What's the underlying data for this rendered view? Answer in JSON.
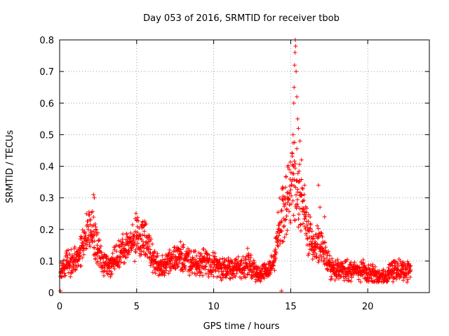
{
  "chart_data": {
    "type": "scatter",
    "title": "Day 053 of 2016, SRMTID for receiver tbob",
    "xlabel": "GPS time / hours",
    "ylabel": "SRMTID / TECUs",
    "xlim": [
      0,
      24
    ],
    "ylim": [
      0,
      0.8
    ],
    "x_ticks": [
      0,
      5,
      10,
      15,
      20
    ],
    "x_tick_labels": [
      "0",
      "5",
      "10",
      "15",
      "20"
    ],
    "y_ticks": [
      0,
      0.1,
      0.2,
      0.3,
      0.4,
      0.5,
      0.6,
      0.7,
      0.8
    ],
    "y_tick_labels": [
      "0",
      "0.1",
      "0.2",
      "0.3",
      "0.4",
      "0.5",
      "0.6",
      "0.7",
      "0.8"
    ],
    "grid": true,
    "marker": "+",
    "series_color": "#ff0000",
    "profile": {
      "x": [
        0.0,
        0.2,
        0.5,
        0.8,
        1.0,
        1.3,
        1.5,
        1.7,
        1.9,
        2.0,
        2.1,
        2.2,
        2.4,
        2.6,
        2.8,
        3.0,
        3.3,
        3.6,
        3.9,
        4.2,
        4.5,
        4.8,
        5.0,
        5.2,
        5.4,
        5.6,
        5.8,
        6.0,
        6.3,
        6.6,
        7.0,
        7.3,
        7.6,
        7.8,
        8.0,
        8.3,
        8.6,
        9.0,
        9.3,
        9.6,
        10.0,
        10.3,
        10.6,
        11.0,
        11.3,
        11.6,
        11.9,
        12.2,
        12.4,
        12.6,
        12.8,
        13.0,
        13.2,
        13.5,
        13.8,
        14.0,
        14.2,
        14.4,
        14.6,
        14.8,
        15.0,
        15.2,
        15.4,
        15.6,
        15.8,
        16.0,
        16.2,
        16.4,
        16.6,
        16.8,
        17.0,
        17.2,
        17.4,
        17.6,
        17.8,
        18.0,
        18.3,
        18.6,
        19.0,
        19.3,
        19.6,
        20.0,
        20.3,
        20.6,
        21.0,
        21.3,
        21.6,
        21.9,
        22.2,
        22.5,
        22.8
      ],
      "y": [
        0.07,
        0.08,
        0.09,
        0.1,
        0.1,
        0.12,
        0.15,
        0.18,
        0.2,
        0.21,
        0.2,
        0.18,
        0.15,
        0.12,
        0.1,
        0.09,
        0.09,
        0.1,
        0.12,
        0.14,
        0.15,
        0.16,
        0.18,
        0.17,
        0.18,
        0.16,
        0.14,
        0.11,
        0.09,
        0.08,
        0.09,
        0.1,
        0.11,
        0.12,
        0.11,
        0.1,
        0.09,
        0.09,
        0.1,
        0.1,
        0.09,
        0.08,
        0.08,
        0.08,
        0.07,
        0.08,
        0.08,
        0.09,
        0.08,
        0.07,
        0.06,
        0.06,
        0.07,
        0.07,
        0.08,
        0.12,
        0.2,
        0.25,
        0.27,
        0.3,
        0.33,
        0.36,
        0.33,
        0.3,
        0.27,
        0.22,
        0.18,
        0.16,
        0.15,
        0.15,
        0.14,
        0.12,
        0.1,
        0.08,
        0.07,
        0.07,
        0.07,
        0.07,
        0.07,
        0.07,
        0.07,
        0.06,
        0.06,
        0.05,
        0.05,
        0.06,
        0.07,
        0.07,
        0.07,
        0.07,
        0.07
      ]
    },
    "spikes": [
      {
        "x": 2.2,
        "y": 0.31
      },
      {
        "x": 2.25,
        "y": 0.3
      },
      {
        "x": 5.0,
        "y": 0.23
      },
      {
        "x": 5.4,
        "y": 0.225
      },
      {
        "x": 15.1,
        "y": 0.44
      },
      {
        "x": 15.15,
        "y": 0.5
      },
      {
        "x": 15.2,
        "y": 0.6
      },
      {
        "x": 15.22,
        "y": 0.65
      },
      {
        "x": 15.25,
        "y": 0.72
      },
      {
        "x": 15.28,
        "y": 0.76
      },
      {
        "x": 15.3,
        "y": 0.8
      },
      {
        "x": 15.32,
        "y": 0.78
      },
      {
        "x": 15.35,
        "y": 0.7
      },
      {
        "x": 15.4,
        "y": 0.62
      },
      {
        "x": 15.45,
        "y": 0.55
      },
      {
        "x": 15.5,
        "y": 0.52
      },
      {
        "x": 15.6,
        "y": 0.48
      },
      {
        "x": 15.7,
        "y": 0.42
      },
      {
        "x": 14.5,
        "y": 0.33
      },
      {
        "x": 14.9,
        "y": 0.39
      },
      {
        "x": 15.9,
        "y": 0.34
      },
      {
        "x": 16.8,
        "y": 0.34
      },
      {
        "x": 16.9,
        "y": 0.27
      },
      {
        "x": 17.2,
        "y": 0.24
      },
      {
        "x": 12.2,
        "y": 0.14
      },
      {
        "x": 0.05,
        "y": 0.005
      },
      {
        "x": 14.4,
        "y": 0.005
      }
    ]
  }
}
